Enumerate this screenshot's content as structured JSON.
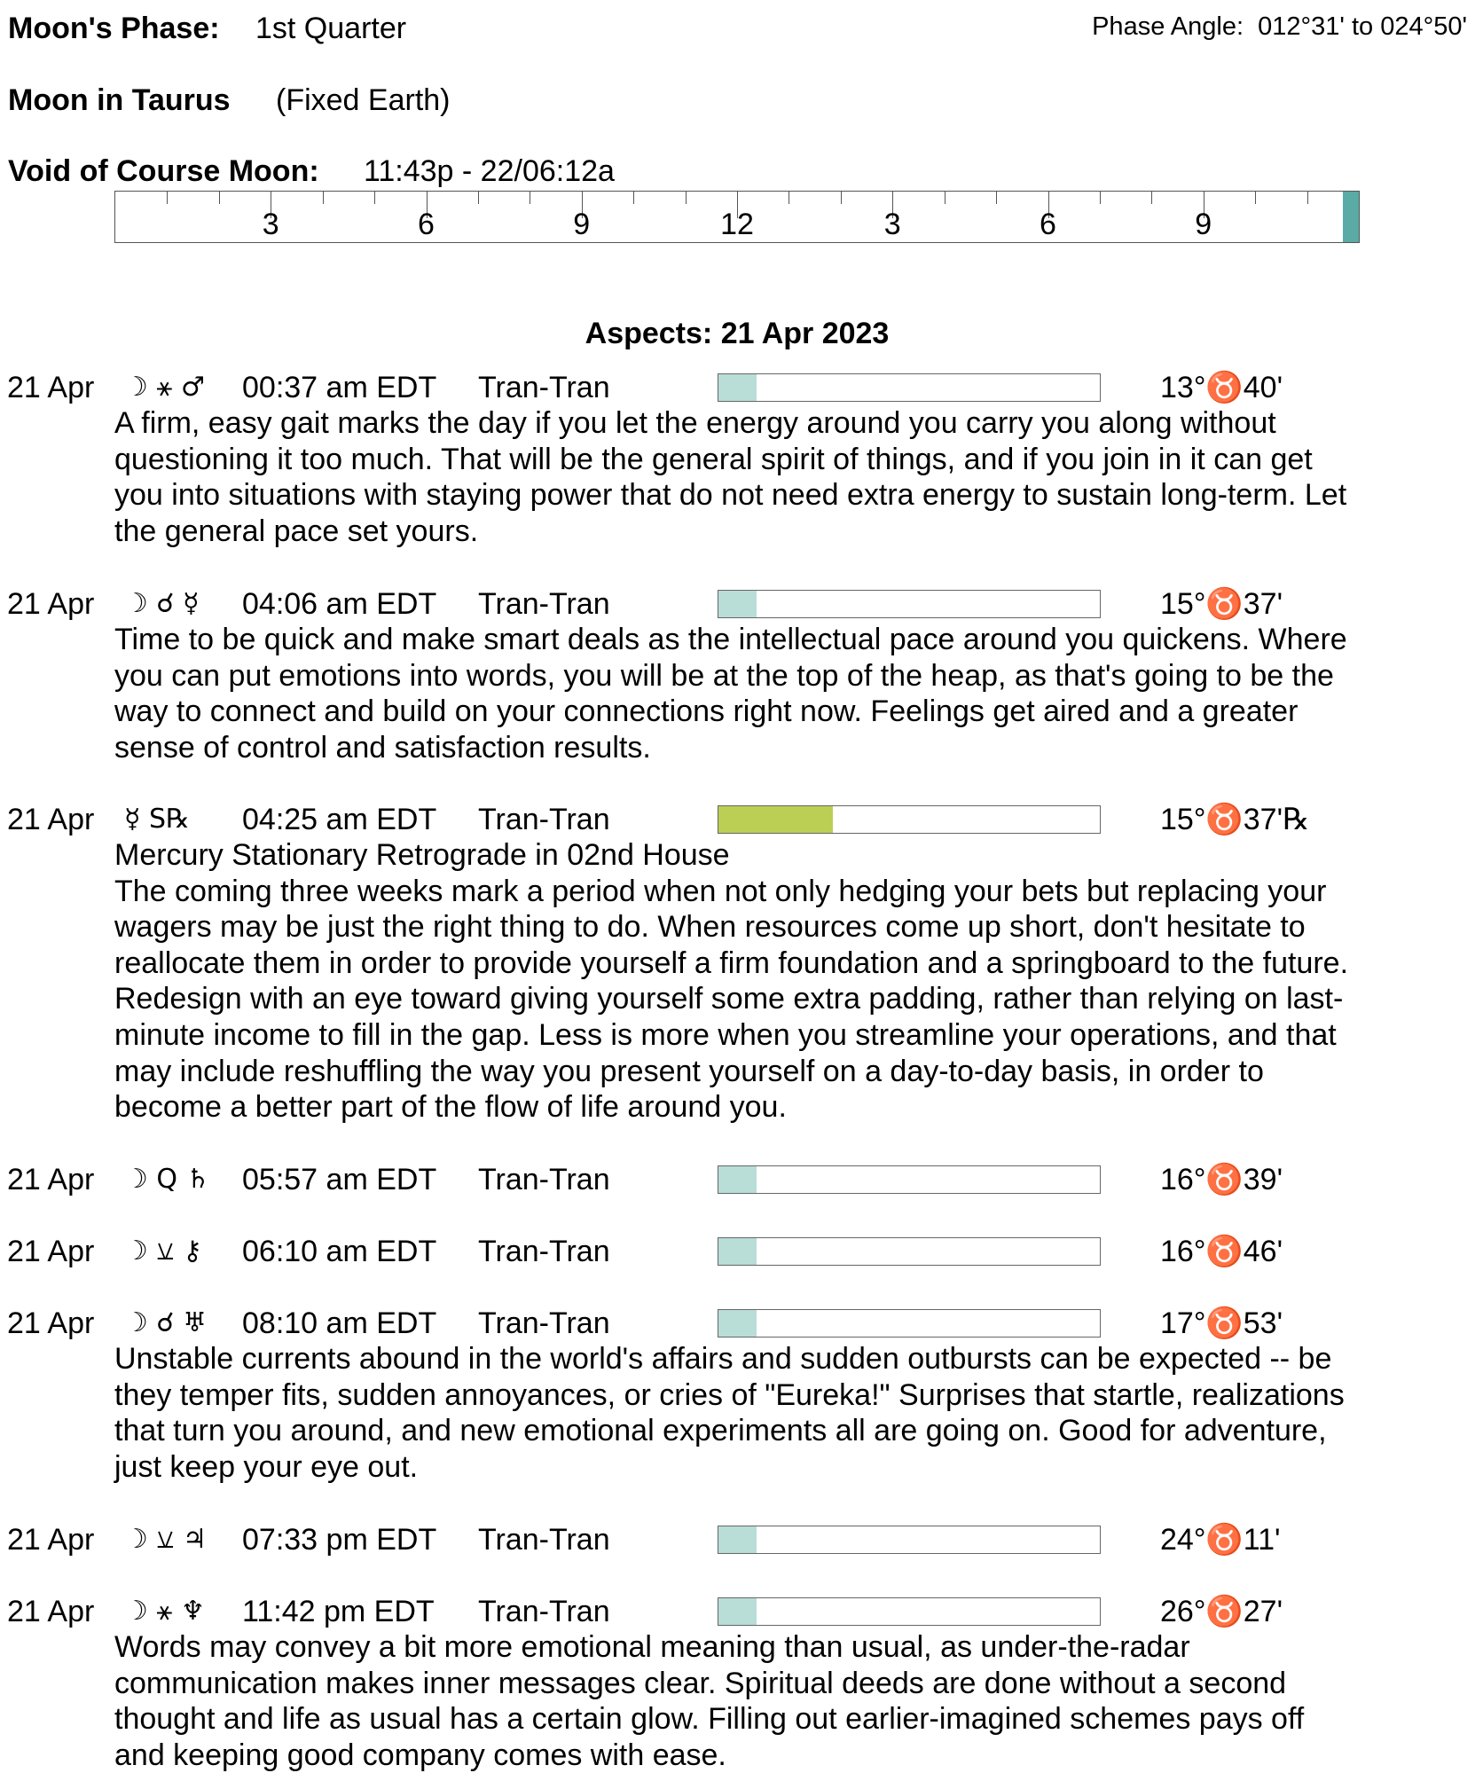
{
  "header": {
    "phase_label": "Moon's Phase:",
    "phase_value": "1st Quarter",
    "phase_angle_label": "Phase Angle:",
    "phase_angle_value": "012°31' to 024°50'",
    "moon_sign_label": "Moon in Taurus",
    "moon_sign_value": "(Fixed Earth)",
    "voc_label": "Void of Course Moon:",
    "voc_value": "11:43p - 22/06:12a"
  },
  "timeline": {
    "hour_labels": [
      "3",
      "6",
      "9",
      "12",
      "3",
      "6",
      "9"
    ],
    "voc_color": "#5aaba6"
  },
  "aspects_title": "Aspects: 21 Apr 2023",
  "colors": {
    "bar_default": "#b9ddd7",
    "bar_station": "#bccf55"
  },
  "aspects": [
    {
      "date": "21 Apr",
      "glyphs": "☽ ⚹ ♂",
      "time": "00:37 am EDT",
      "type": "Tran-Tran",
      "strength": 0.1,
      "color": "#b9ddd7",
      "position": "13°♉40'",
      "subtitle": "",
      "lines": [
        "A firm, easy gait marks the day if you let the energy around you carry you along without",
        "questioning it too much. That will be the general spirit of things, and if you join in it can get",
        "you into situations with staying power that do not need extra energy to sustain long-term. Let",
        "the general pace set yours."
      ]
    },
    {
      "date": "21 Apr",
      "glyphs": "☽ ☌ ☿",
      "time": "04:06 am EDT",
      "type": "Tran-Tran",
      "strength": 0.1,
      "color": "#b9ddd7",
      "position": "15°♉37'",
      "subtitle": "",
      "lines": [
        "Time to be quick and make smart deals as the intellectual pace around you quickens. Where",
        "you can put emotions into words, you will be at the top of the heap, as that's going to be the",
        "way to connect and build on your connections right now. Feelings get aired and a greater",
        "sense of control and satisfaction results."
      ]
    },
    {
      "date": "21 Apr",
      "glyphs": "☿ S℞",
      "time": "04:25 am EDT",
      "type": "Tran-Tran",
      "strength": 0.3,
      "color": "#bccf55",
      "position": "15°♉37'℞",
      "subtitle": "Mercury Stationary Retrograde in 02nd House",
      "lines": [
        "The coming three weeks mark a period when not only hedging your bets but replacing your",
        "wagers may be just the right thing to do. When resources come up short, don't hesitate to",
        "reallocate them in order to provide yourself a firm foundation and a springboard to the future.",
        "Redesign with an eye toward giving yourself some extra padding, rather than relying on last-",
        "minute income to fill in the gap. Less is more when you streamline your operations, and that",
        "may include reshuffling the way you present yourself on a day-to-day basis, in order to",
        "become a better part of the flow of life around you."
      ]
    },
    {
      "date": "21 Apr",
      "glyphs": "☽ Q ♄",
      "time": "05:57 am EDT",
      "type": "Tran-Tran",
      "strength": 0.1,
      "color": "#b9ddd7",
      "position": "16°♉39'",
      "subtitle": "",
      "lines": []
    },
    {
      "date": "21 Apr",
      "glyphs": "☽ ⚺ ⚷",
      "time": "06:10 am EDT",
      "type": "Tran-Tran",
      "strength": 0.1,
      "color": "#b9ddd7",
      "position": "16°♉46'",
      "subtitle": "",
      "lines": []
    },
    {
      "date": "21 Apr",
      "glyphs": "☽ ☌ ♅",
      "time": "08:10 am EDT",
      "type": "Tran-Tran",
      "strength": 0.1,
      "color": "#b9ddd7",
      "position": "17°♉53'",
      "subtitle": "",
      "lines": [
        "Unstable currents abound in the world's affairs and sudden outbursts can be expected -- be",
        "they temper fits, sudden annoyances, or cries of \"Eureka!\" Surprises that startle, realizations",
        "that turn you around, and new emotional experiments all are going on. Good for adventure,",
        "just keep your eye out."
      ]
    },
    {
      "date": "21 Apr",
      "glyphs": "☽ ⚺ ♃",
      "time": "07:33 pm EDT",
      "type": "Tran-Tran",
      "strength": 0.1,
      "color": "#b9ddd7",
      "position": "24°♉11'",
      "subtitle": "",
      "lines": []
    },
    {
      "date": "21 Apr",
      "glyphs": "☽ ⚹ ♆",
      "time": "11:42 pm EDT",
      "type": "Tran-Tran",
      "strength": 0.1,
      "color": "#b9ddd7",
      "position": "26°♉27'",
      "subtitle": "",
      "lines": [
        "Words may convey a bit more emotional meaning than usual, as under-the-radar",
        "communication makes inner messages clear. Spiritual deeds are done without a second",
        "thought and life as usual has a certain glow. Filling out earlier-imagined schemes pays off",
        "and keeping good company comes with ease."
      ]
    }
  ]
}
